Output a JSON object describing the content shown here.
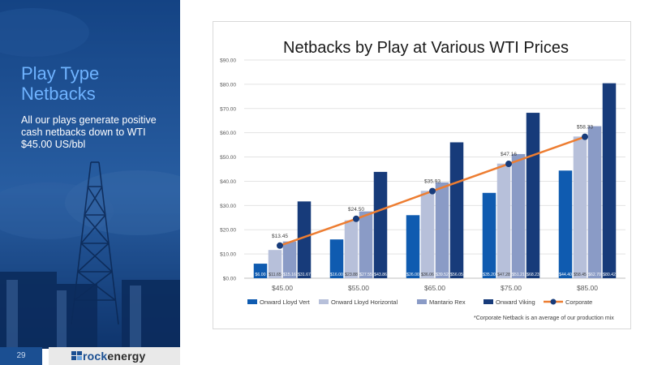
{
  "slide": {
    "title": "Play Type Netbacks",
    "subtitle": "All our plays generate positive cash netbacks down to WTI $45.00 US/bbl",
    "page_number": "29",
    "logo_part1": "rock",
    "logo_part2": "energy",
    "footnote": "*Corporate Netback is an average of our production mix"
  },
  "chart_data": {
    "type": "bar",
    "title": "Netbacks by Play at Various WTI Prices",
    "categories": [
      "$45.00",
      "$55.00",
      "$65.00",
      "$75.00",
      "$85.00"
    ],
    "ylim": [
      0,
      90
    ],
    "yticks": [
      "$0.00",
      "$10.00",
      "$20.00",
      "$30.00",
      "$40.00",
      "$50.00",
      "$60.00",
      "$70.00",
      "$80.00",
      "$90.00"
    ],
    "grid": true,
    "legend_position": "bottom",
    "series": [
      {
        "name": "Onward Lloyd Vert",
        "color": "#0f5bb0",
        "values": [
          6.0,
          16.0,
          26.0,
          35.2,
          44.4
        ],
        "labels": [
          "$6.00",
          "$16.00",
          "$26.00",
          "$35.20",
          "$44.40"
        ]
      },
      {
        "name": "Onward Lloyd Horizontal",
        "color": "#b7c0da",
        "values": [
          11.65,
          23.88,
          36.06,
          47.28,
          58.45
        ],
        "labels": [
          "$11.65",
          "$23.88",
          "$36.06",
          "$47.28",
          "$58.45"
        ]
      },
      {
        "name": "Mantario Rex",
        "color": "#8a9bc6",
        "values": [
          15.16,
          27.55,
          39.52,
          51.21,
          62.7
        ],
        "labels": [
          "$15.16",
          "$27.55",
          "$39.52",
          "$51.21",
          "$62.70"
        ]
      },
      {
        "name": "Onward Viking",
        "color": "#173b7a",
        "values": [
          31.67,
          43.86,
          56.05,
          68.23,
          80.42
        ],
        "labels": [
          "$31.67",
          "$43.86",
          "$56.05",
          "$68.23",
          "$80.42"
        ]
      }
    ],
    "line_series": {
      "name": "Corporate",
      "color": "#ed7d31",
      "marker_color": "#173b7a",
      "values": [
        13.45,
        24.5,
        35.93,
        47.16,
        58.33
      ],
      "labels": [
        "$13.45",
        "$24.50",
        "$35.93",
        "$47.16",
        "$58.33"
      ]
    }
  }
}
